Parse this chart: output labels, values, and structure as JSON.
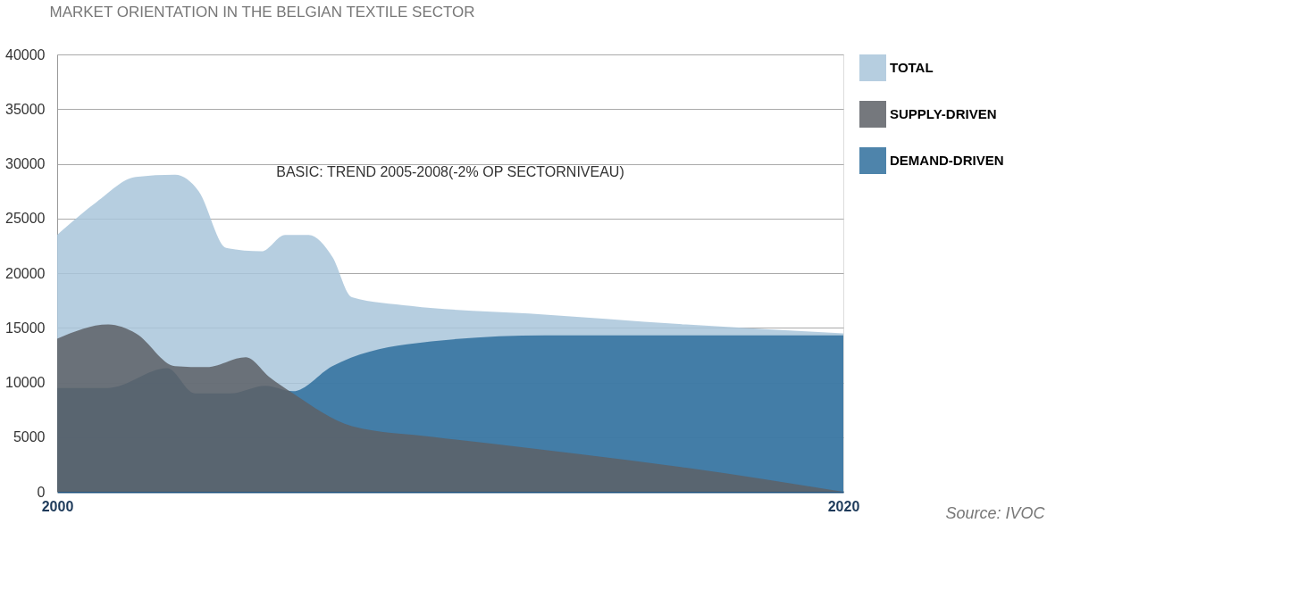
{
  "chart_data": {
    "type": "area",
    "title": "MARKET ORIENTATION  IN  THE  BELGIAN  TEXTILE  SECTOR",
    "annotations": [
      "BASIC: TREND 2005-2008(-2% OP SECTORNIVEAU)",
      "Source: IVOC"
    ],
    "xlim": [
      2000,
      2020
    ],
    "xticks": [
      2000,
      2020
    ],
    "ylim": [
      0,
      40000
    ],
    "yticks": [
      0,
      5000,
      10000,
      15000,
      20000,
      25000,
      30000,
      35000,
      40000
    ],
    "grid": "y",
    "legend": "right",
    "series": [
      {
        "name": "TOTAL",
        "color": "#a9c6da",
        "x": [
          2000,
          2001,
          2002,
          2003,
          2003.6,
          2004.3,
          2005.2,
          2005.8,
          2006.4,
          2007,
          2007.5,
          2009,
          2012,
          2016,
          2020
        ],
        "values": [
          23500,
          26500,
          28800,
          29000,
          27500,
          22300,
          22000,
          23500,
          23500,
          21500,
          17800,
          17000,
          16300,
          15300,
          14500
        ]
      },
      {
        "name": "SUPPLY-DRIVEN",
        "color": "#5d6066",
        "x": [
          2000,
          2001.3,
          2002,
          2003,
          2003.8,
          2004.8,
          2005.4,
          2006,
          2007.5,
          2009.6,
          2012,
          2016,
          2020
        ],
        "values": [
          14000,
          15300,
          14500,
          11500,
          11400,
          12300,
          10500,
          9000,
          6000,
          5000,
          4000,
          2200,
          0
        ]
      },
      {
        "name": "DEMAND-DRIVEN",
        "color": "#2f6f9c",
        "x": [
          2000,
          2001.3,
          2002.8,
          2003.5,
          2004.4,
          2005.3,
          2006,
          2007,
          2008.9,
          2012.4,
          2016,
          2020
        ],
        "values": [
          9500,
          9500,
          11300,
          9000,
          9000,
          9700,
          9200,
          11500,
          13500,
          14300,
          14300,
          14300
        ]
      }
    ]
  }
}
